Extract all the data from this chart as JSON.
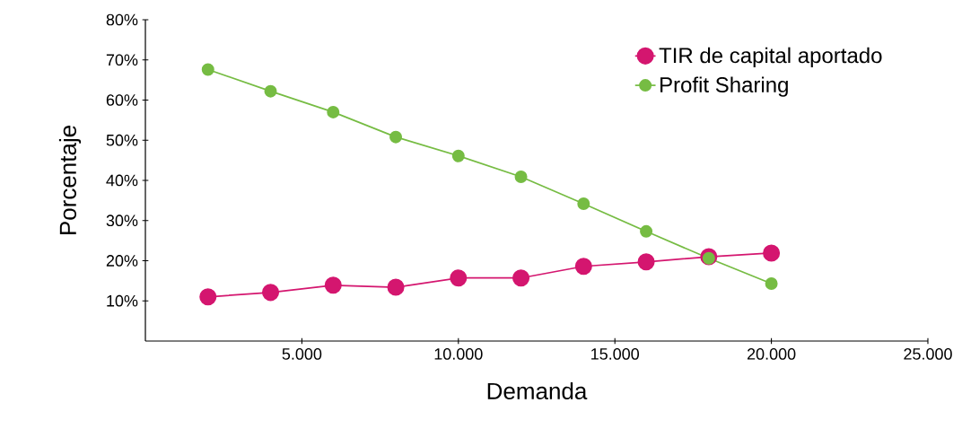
{
  "chart_data": {
    "type": "line",
    "xlabel": "Demanda",
    "ylabel": "Porcentaje",
    "x": [
      2000,
      4000,
      6000,
      8000,
      10000,
      12000,
      14000,
      16000,
      18000,
      20000
    ],
    "series": [
      {
        "name": "TIR de capital aportado",
        "color": "#d4166f",
        "values": [
          11.0,
          12.1,
          13.9,
          13.4,
          15.7,
          15.7,
          18.6,
          19.7,
          21.0,
          21.9
        ]
      },
      {
        "name": "Profit Sharing",
        "color": "#76bc43",
        "values": [
          67.6,
          62.2,
          57.0,
          50.8,
          46.1,
          40.9,
          34.2,
          27.3,
          20.6,
          14.3
        ]
      }
    ],
    "xlim": [
      0,
      25000
    ],
    "ylim": [
      0,
      80
    ],
    "xticks": [
      {
        "value": 5000,
        "label": "5.000"
      },
      {
        "value": 10000,
        "label": "10.000"
      },
      {
        "value": 15000,
        "label": "15.000"
      },
      {
        "value": 20000,
        "label": "20.000"
      },
      {
        "value": 25000,
        "label": "25.000"
      }
    ],
    "yticks": [
      {
        "value": 10,
        "label": "10%"
      },
      {
        "value": 20,
        "label": "20%"
      },
      {
        "value": 30,
        "label": "30%"
      },
      {
        "value": 40,
        "label": "40%"
      },
      {
        "value": 50,
        "label": "50%"
      },
      {
        "value": 60,
        "label": "60%"
      },
      {
        "value": 70,
        "label": "70%"
      },
      {
        "value": 80,
        "label": "80%"
      }
    ],
    "grid": false,
    "legend": "top right",
    "marker": "circle",
    "line_style": "solid"
  }
}
